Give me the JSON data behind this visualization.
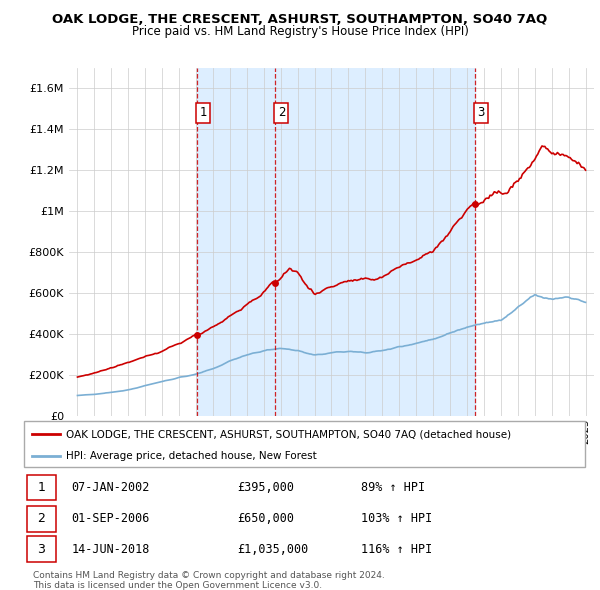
{
  "title": "OAK LODGE, THE CRESCENT, ASHURST, SOUTHAMPTON, SO40 7AQ",
  "subtitle": "Price paid vs. HM Land Registry's House Price Index (HPI)",
  "legend_label_red": "OAK LODGE, THE CRESCENT, ASHURST, SOUTHAMPTON, SO40 7AQ (detached house)",
  "legend_label_blue": "HPI: Average price, detached house, New Forest",
  "sale_info": [
    {
      "num": "1",
      "date": "07-JAN-2002",
      "price": "£395,000",
      "hpi": "89% ↑ HPI"
    },
    {
      "num": "2",
      "date": "01-SEP-2006",
      "price": "£650,000",
      "hpi": "103% ↑ HPI"
    },
    {
      "num": "3",
      "date": "14-JUN-2018",
      "price": "£1,035,000",
      "hpi": "116% ↑ HPI"
    }
  ],
  "red_color": "#cc0000",
  "blue_color": "#7bafd4",
  "shade_color": "#ddeeff",
  "dashed_color": "#cc0000",
  "background_color": "#ffffff",
  "grid_color": "#cccccc",
  "footer": "Contains HM Land Registry data © Crown copyright and database right 2024.\nThis data is licensed under the Open Government Licence v3.0.",
  "ylim": [
    0,
    1700000
  ],
  "xmin": 1994.5,
  "xmax": 2025.5,
  "sale_dates": [
    2002.04,
    2006.67,
    2018.45
  ],
  "sale_prices": [
    395000,
    650000,
    1035000
  ]
}
